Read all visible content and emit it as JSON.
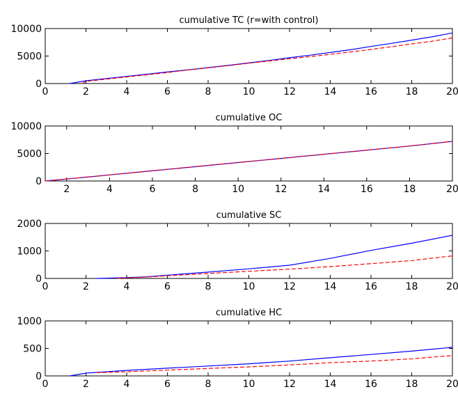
{
  "chart_data": [
    {
      "type": "line",
      "title": "cumulative TC (r=with control)",
      "xlim": [
        0,
        20
      ],
      "ylim": [
        0,
        10000
      ],
      "xticks": [
        0,
        2,
        4,
        6,
        8,
        10,
        12,
        14,
        16,
        18,
        20
      ],
      "yticks": [
        0,
        5000,
        10000
      ],
      "grid": false,
      "series": [
        {
          "color": "#0000ff",
          "style": "solid",
          "x": [
            1.2,
            2,
            3,
            4,
            5,
            6,
            7,
            8,
            9,
            10,
            11,
            12,
            13,
            14,
            15,
            16,
            17,
            18,
            19,
            20
          ],
          "y": [
            0,
            500,
            900,
            1300,
            1700,
            2100,
            2500,
            2900,
            3300,
            3750,
            4200,
            4700,
            5150,
            5650,
            6150,
            6750,
            7300,
            7900,
            8500,
            9200
          ]
        },
        {
          "color": "#ff0000",
          "style": "dashed",
          "x": [
            1.8,
            2,
            3,
            4,
            5,
            6,
            7,
            8,
            9,
            10,
            11,
            12,
            13,
            14,
            15,
            16,
            17,
            18,
            19,
            20
          ],
          "y": [
            0,
            400,
            800,
            1200,
            1600,
            2000,
            2450,
            2850,
            3250,
            3700,
            4100,
            4500,
            4900,
            5300,
            5750,
            6200,
            6700,
            7200,
            7700,
            8300
          ]
        }
      ]
    },
    {
      "type": "line",
      "title": "cumulative OC",
      "xlim": [
        1,
        20
      ],
      "ylim": [
        0,
        10000
      ],
      "xticks": [
        2,
        4,
        6,
        8,
        10,
        12,
        14,
        16,
        18,
        20
      ],
      "yticks": [
        0,
        5000,
        10000
      ],
      "grid": false,
      "series": [
        {
          "color": "#0000ff",
          "style": "solid",
          "x": [
            1,
            2,
            4,
            6,
            8,
            10,
            12,
            14,
            16,
            18,
            20
          ],
          "y": [
            0,
            350,
            1100,
            1850,
            2600,
            3350,
            4100,
            4850,
            5600,
            6350,
            7200
          ]
        },
        {
          "color": "#ff0000",
          "style": "dashed",
          "x": [
            1,
            2,
            4,
            6,
            8,
            10,
            12,
            14,
            16,
            18,
            20
          ],
          "y": [
            0,
            380,
            1120,
            1870,
            2620,
            3370,
            4120,
            4870,
            5620,
            6370,
            7220
          ]
        }
      ]
    },
    {
      "type": "line",
      "title": "cumulative SC",
      "xlim": [
        0,
        20
      ],
      "ylim": [
        0,
        2000
      ],
      "xticks": [
        0,
        2,
        4,
        6,
        8,
        10,
        12,
        14,
        16,
        18,
        20
      ],
      "yticks": [
        0,
        1000,
        2000
      ],
      "grid": false,
      "series": [
        {
          "color": "#0000ff",
          "style": "solid",
          "x": [
            2.5,
            4,
            5,
            6,
            8,
            10,
            12,
            14,
            16,
            18,
            20
          ],
          "y": [
            0,
            30,
            60,
            120,
            230,
            350,
            480,
            730,
            1020,
            1280,
            1570
          ]
        },
        {
          "color": "#ff0000",
          "style": "dashed",
          "x": [
            3.5,
            4,
            5,
            6,
            8,
            10,
            12,
            14,
            16,
            18,
            20
          ],
          "y": [
            0,
            20,
            50,
            100,
            180,
            260,
            340,
            430,
            540,
            650,
            820
          ]
        }
      ]
    },
    {
      "type": "line",
      "title": "cumulative HC",
      "xlim": [
        0,
        20
      ],
      "ylim": [
        0,
        1000
      ],
      "xticks": [
        0,
        2,
        4,
        6,
        8,
        10,
        12,
        14,
        16,
        18,
        20
      ],
      "yticks": [
        0,
        500,
        1000
      ],
      "grid": false,
      "series": [
        {
          "color": "#0000ff",
          "style": "solid",
          "x": [
            1.2,
            2,
            4,
            6,
            8,
            10,
            12,
            14,
            16,
            18,
            20
          ],
          "y": [
            0,
            50,
            100,
            140,
            180,
            220,
            270,
            330,
            390,
            450,
            520
          ]
        },
        {
          "color": "#ff0000",
          "style": "dashed",
          "x": [
            2.5,
            4,
            6,
            8,
            10,
            12,
            14,
            16,
            18,
            20
          ],
          "y": [
            60,
            75,
            105,
            135,
            165,
            200,
            240,
            270,
            310,
            370
          ]
        }
      ]
    }
  ]
}
